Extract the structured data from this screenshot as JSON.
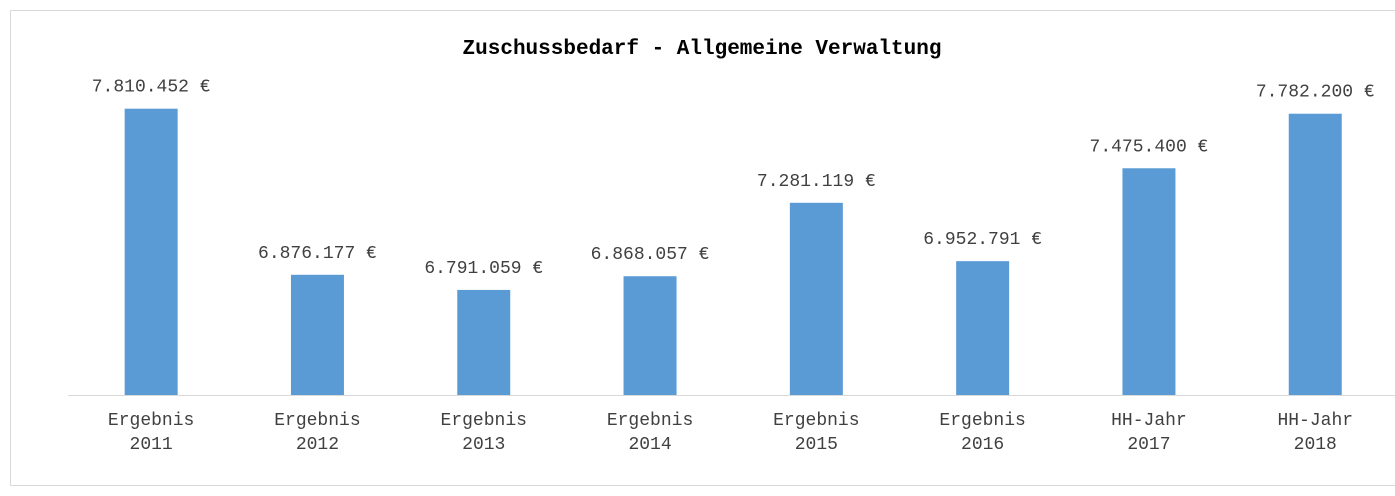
{
  "chart_data": {
    "type": "bar",
    "title": "Zuschussbedarf - Allgemeine Verwaltung",
    "categories": [
      "Ergebnis 2011",
      "Ergebnis 2012",
      "Ergebnis 2013",
      "Ergebnis 2014",
      "Ergebnis 2015",
      "Ergebnis 2016",
      "HH-Jahr 2017",
      "HH-Jahr 2018"
    ],
    "values": [
      7810452,
      6876177,
      6791059,
      6868057,
      7281119,
      6952791,
      7475400,
      7782200
    ],
    "value_labels": [
      "7.810.452 €",
      "6.876.177 €",
      "6.791.059 €",
      "6.868.057 €",
      "7.281.119 €",
      "6.952.791 €",
      "7.475.400 €",
      "7.782.200 €"
    ],
    "color": "#5b9bd5",
    "ylim": [
      6200000,
      8000000
    ]
  }
}
